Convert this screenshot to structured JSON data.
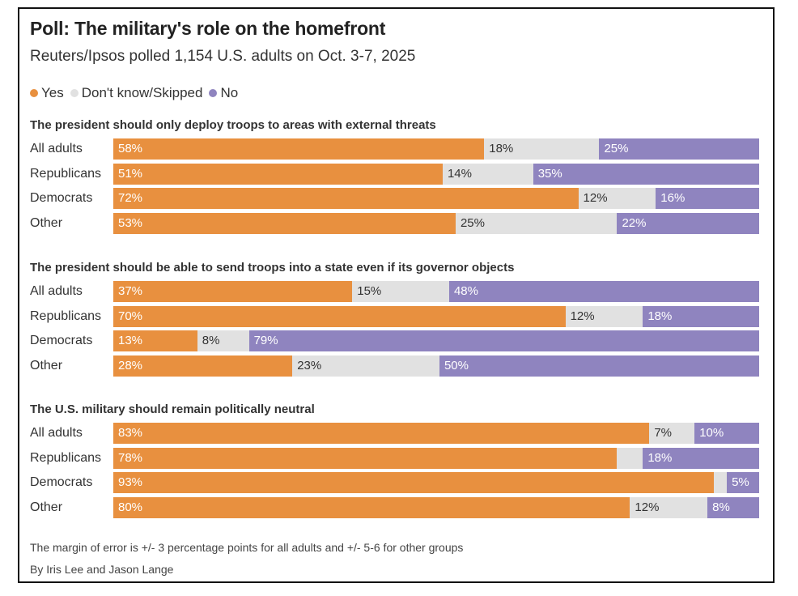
{
  "title": "Poll: The military's role on the homefront",
  "subtitle": "Reuters/Ipsos polled 1,154 U.S. adults on Oct. 3-7, 2025",
  "legend": [
    {
      "label": "Yes",
      "color": "#e8903f"
    },
    {
      "label": "Don't know/Skipped",
      "color": "#e1e1e1"
    },
    {
      "label": "No",
      "color": "#8f84bf"
    }
  ],
  "colors": {
    "yes": "#e8903f",
    "dk": "#e1e1e1",
    "no": "#8f84bf",
    "yes_text": "#ffffff",
    "dk_text": "#333333",
    "no_text": "#ffffff"
  },
  "chart_data": [
    {
      "type": "bar",
      "stacked": true,
      "orientation": "horizontal",
      "title": "The president should only deploy troops to areas with external threats",
      "categories": [
        "All adults",
        "Republicans",
        "Democrats",
        "Other"
      ],
      "series": [
        {
          "name": "Yes",
          "values": [
            58,
            51,
            72,
            53
          ]
        },
        {
          "name": "Don't know/Skipped",
          "values": [
            18,
            14,
            12,
            25
          ]
        },
        {
          "name": "No",
          "values": [
            25,
            35,
            16,
            22
          ]
        }
      ],
      "labels": [
        [
          "58%",
          "18%",
          "25%"
        ],
        [
          "51%",
          "14%",
          "35%"
        ],
        [
          "72%",
          "12%",
          "16%"
        ],
        [
          "53%",
          "25%",
          "22%"
        ]
      ]
    },
    {
      "type": "bar",
      "stacked": true,
      "orientation": "horizontal",
      "title": "The president should be able to send troops into a state even if its governor objects",
      "categories": [
        "All adults",
        "Republicans",
        "Democrats",
        "Other"
      ],
      "series": [
        {
          "name": "Yes",
          "values": [
            37,
            70,
            13,
            28
          ]
        },
        {
          "name": "Don't know/Skipped",
          "values": [
            15,
            12,
            8,
            23
          ]
        },
        {
          "name": "No",
          "values": [
            48,
            18,
            79,
            50
          ]
        }
      ],
      "labels": [
        [
          "37%",
          "15%",
          "48%"
        ],
        [
          "70%",
          "12%",
          "18%"
        ],
        [
          "13%",
          "8%",
          "79%"
        ],
        [
          "28%",
          "23%",
          "50%"
        ]
      ]
    },
    {
      "type": "bar",
      "stacked": true,
      "orientation": "horizontal",
      "title": "The U.S. military should remain politically neutral",
      "categories": [
        "All adults",
        "Republicans",
        "Democrats",
        "Other"
      ],
      "series": [
        {
          "name": "Yes",
          "values": [
            83,
            78,
            93,
            80
          ]
        },
        {
          "name": "Don't know/Skipped",
          "values": [
            7,
            4,
            2,
            12
          ]
        },
        {
          "name": "No",
          "values": [
            10,
            18,
            5,
            8
          ]
        }
      ],
      "labels": [
        [
          "83%",
          "7%",
          "10%"
        ],
        [
          "78%",
          "",
          "18%"
        ],
        [
          "93%",
          "",
          "5%"
        ],
        [
          "80%",
          "12%",
          "8%"
        ]
      ]
    }
  ],
  "footnote": "The margin of error is +/- 3 percentage points for all adults and +/- 5-6 for other groups",
  "byline": "By Iris Lee and Jason Lange"
}
